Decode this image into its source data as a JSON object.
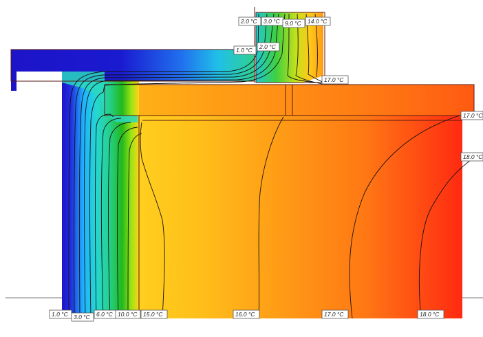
{
  "diagram": {
    "labels_top": [
      "2.0 °C",
      "3.0 °C",
      "9.0 °C",
      "14.0 °C"
    ],
    "labels_mid": [
      "1.0 °C",
      "2.0 °C",
      "17.0 °C"
    ],
    "labels_right": [
      "17.0 °C",
      "18.0 °C"
    ],
    "labels_bottom": [
      "1.0 °C",
      "3.0 °C",
      "6.0 °C",
      "10.0 °C",
      "15.0 °C",
      "16.0 °C",
      "17.0 °C",
      "18.0 °C"
    ],
    "colors": {
      "cold": "#1d14c8",
      "cool": "#1fb3ff",
      "mid": "#25d7a0",
      "green": "#22b81c",
      "yellow": "#ffd31a",
      "orange": "#ff8a14",
      "hot": "#ff2a12",
      "isotherm": "#111111",
      "baseline": "#777777"
    }
  }
}
